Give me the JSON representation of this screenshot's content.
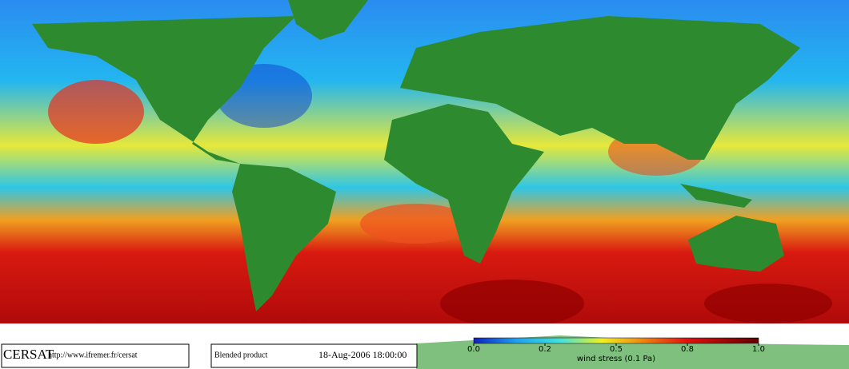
{
  "footer": {
    "logo": "CERSAT",
    "url": "http://www.ifremer.fr/cersat",
    "product": "Blended product",
    "datetime": "18-Aug-2006 18:00:00"
  },
  "colorbar": {
    "label": "wind stress (0.1 Pa)",
    "ticks": [
      {
        "value": 0,
        "label": "0.0"
      },
      {
        "value": 0.2,
        "label": "0.2"
      },
      {
        "value": 0.5,
        "label": "0.5"
      },
      {
        "value": 0.8,
        "label": "0.8"
      },
      {
        "value": 1,
        "label": "1.0"
      }
    ]
  }
}
